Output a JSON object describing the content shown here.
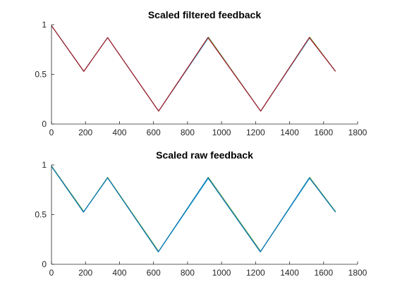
{
  "chart_data": [
    {
      "type": "line",
      "title": "Scaled filtered feedback",
      "xlabel": "",
      "ylabel": "",
      "xlim": [
        0,
        1800
      ],
      "ylim": [
        0,
        1
      ],
      "xticks": [
        0,
        200,
        400,
        600,
        800,
        1000,
        1200,
        1400,
        1600,
        1800
      ],
      "yticks": [
        0,
        0.5,
        1
      ],
      "xtick_labels": [
        "0",
        "200",
        "400",
        "600",
        "800",
        "1000",
        "1200",
        "1400",
        "1600",
        "1800"
      ],
      "ytick_labels": [
        "0",
        "0.5",
        "1"
      ],
      "grid": false,
      "series": [
        {
          "color": "#4DBEEE",
          "x": [
            0,
            190,
            330,
            630,
            925,
            1230,
            1520,
            1670
          ],
          "y": [
            0.99,
            0.53,
            0.87,
            0.13,
            0.87,
            0.13,
            0.87,
            0.53
          ]
        },
        {
          "color": "#77AC30",
          "x": [
            0,
            190,
            330,
            630,
            922,
            1230,
            1518,
            1670
          ],
          "y": [
            0.99,
            0.53,
            0.87,
            0.13,
            0.875,
            0.13,
            0.875,
            0.53
          ]
        },
        {
          "color": "#A2142F",
          "x": [
            0,
            190,
            330,
            630,
            920,
            1230,
            1516,
            1670
          ],
          "y": [
            0.99,
            0.53,
            0.87,
            0.13,
            0.87,
            0.13,
            0.87,
            0.53
          ]
        }
      ]
    },
    {
      "type": "line",
      "title": "Scaled raw feedback",
      "xlabel": "",
      "ylabel": "",
      "xlim": [
        0,
        1800
      ],
      "ylim": [
        0,
        1
      ],
      "xticks": [
        0,
        200,
        400,
        600,
        800,
        1000,
        1200,
        1400,
        1600,
        1800
      ],
      "yticks": [
        0,
        0.5,
        1
      ],
      "xtick_labels": [
        "0",
        "200",
        "400",
        "600",
        "800",
        "1000",
        "1200",
        "1400",
        "1600",
        "1800"
      ],
      "ytick_labels": [
        "0",
        "0.5",
        "1"
      ],
      "grid": false,
      "series": [
        {
          "color": "#4DBEEE",
          "x": [
            0,
            190,
            330,
            630,
            925,
            1230,
            1520,
            1670
          ],
          "y": [
            0.99,
            0.53,
            0.87,
            0.13,
            0.87,
            0.13,
            0.87,
            0.53
          ]
        },
        {
          "color": "#77AC30",
          "x": [
            0,
            190,
            330,
            630,
            922,
            1230,
            1518,
            1670
          ],
          "y": [
            0.99,
            0.53,
            0.875,
            0.13,
            0.875,
            0.13,
            0.875,
            0.53
          ]
        },
        {
          "color": "#0072BD",
          "x": [
            0,
            188,
            330,
            628,
            920,
            1228,
            1516,
            1670
          ],
          "y": [
            0.985,
            0.525,
            0.87,
            0.125,
            0.87,
            0.125,
            0.87,
            0.525
          ]
        }
      ]
    }
  ]
}
